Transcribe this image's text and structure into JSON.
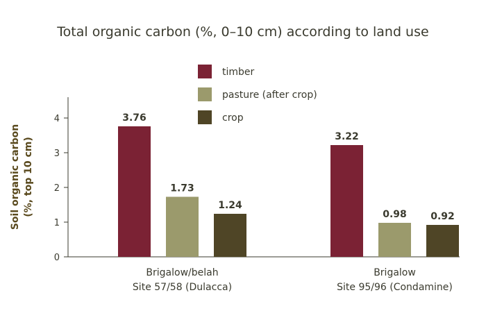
{
  "chart_data": {
    "type": "bar",
    "title": "Total organic carbon (%, 0–10 cm) according to land use",
    "ylabel_lines": [
      "Soil organic carbon",
      "(%, top 10 cm)"
    ],
    "ylim": [
      0,
      4.6
    ],
    "yticks": [
      0,
      1,
      2,
      3,
      4
    ],
    "grid": false,
    "legend_position": "top-center",
    "categories": [
      [
        "Brigalow/belah",
        "Site 57/58 (Dulacca)"
      ],
      [
        "Brigalow",
        "Site 95/96 (Condamine)"
      ]
    ],
    "series": [
      {
        "name": "timber",
        "color": "#7b2234",
        "values": [
          3.76,
          3.22
        ]
      },
      {
        "name": "pasture (after crop)",
        "color": "#9b9a6c",
        "values": [
          1.73,
          0.98
        ]
      },
      {
        "name": "crop",
        "color": "#4f4526",
        "values": [
          1.24,
          0.92
        ]
      }
    ]
  }
}
